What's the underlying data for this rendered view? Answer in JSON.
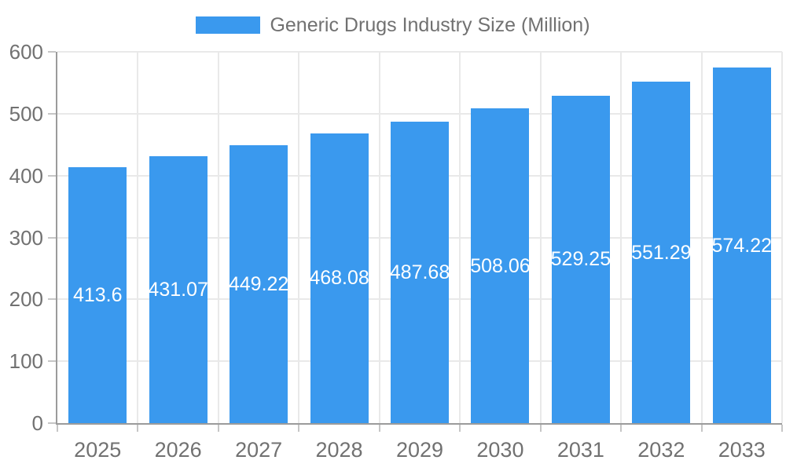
{
  "chart_data": {
    "type": "bar",
    "title": "Generic Drugs Industry Size (Million)",
    "categories": [
      "2025",
      "2026",
      "2027",
      "2028",
      "2029",
      "2030",
      "2031",
      "2032",
      "2033"
    ],
    "values": [
      413.6,
      431.07,
      449.22,
      468.08,
      487.68,
      508.06,
      529.25,
      551.29,
      574.22
    ],
    "value_labels": [
      "413.6",
      "431.07",
      "449.22",
      "468.08",
      "487.68",
      "508.06",
      "529.25",
      "551.29",
      "574.22"
    ],
    "xlabel": "",
    "ylabel": "",
    "ylim": [
      0,
      600
    ],
    "ytick_step": 100,
    "ytick_labels": [
      "0",
      "100",
      "200",
      "300",
      "400",
      "500",
      "600"
    ],
    "grid": true,
    "legend_position": "top",
    "colors": {
      "bar": "#3A99EE",
      "value_label": "#ffffff",
      "axis_text": "#717171",
      "grid_line": "#e9e9e9",
      "axis_line": "#9b9b9b",
      "tick_mark": "#c6c6c6",
      "background": "#ffffff"
    }
  }
}
